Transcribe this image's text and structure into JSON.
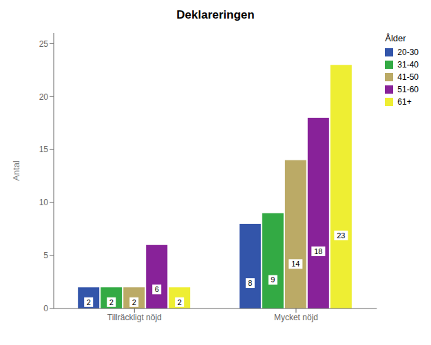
{
  "chart_data": {
    "type": "bar",
    "title": "Deklareringen",
    "ylabel": "Antal",
    "legend_title": "Ålder",
    "categories": [
      "Tillräckligt nöjd",
      "Mycket nöjd"
    ],
    "series": [
      {
        "name": "20-30",
        "color": "#3355aa",
        "values": [
          2,
          8
        ]
      },
      {
        "name": "31-40",
        "color": "#33aa44",
        "values": [
          2,
          9
        ]
      },
      {
        "name": "41-50",
        "color": "#bbaa66",
        "values": [
          2,
          14
        ]
      },
      {
        "name": "51-60",
        "color": "#882299",
        "values": [
          6,
          18
        ]
      },
      {
        "name": "61+",
        "color": "#eeee33",
        "values": [
          2,
          23
        ]
      }
    ],
    "ylim": [
      0,
      26
    ],
    "yticks": [
      0,
      5,
      10,
      15,
      20,
      25
    ],
    "grid": false,
    "legend": "upper right",
    "data_labels": true
  }
}
